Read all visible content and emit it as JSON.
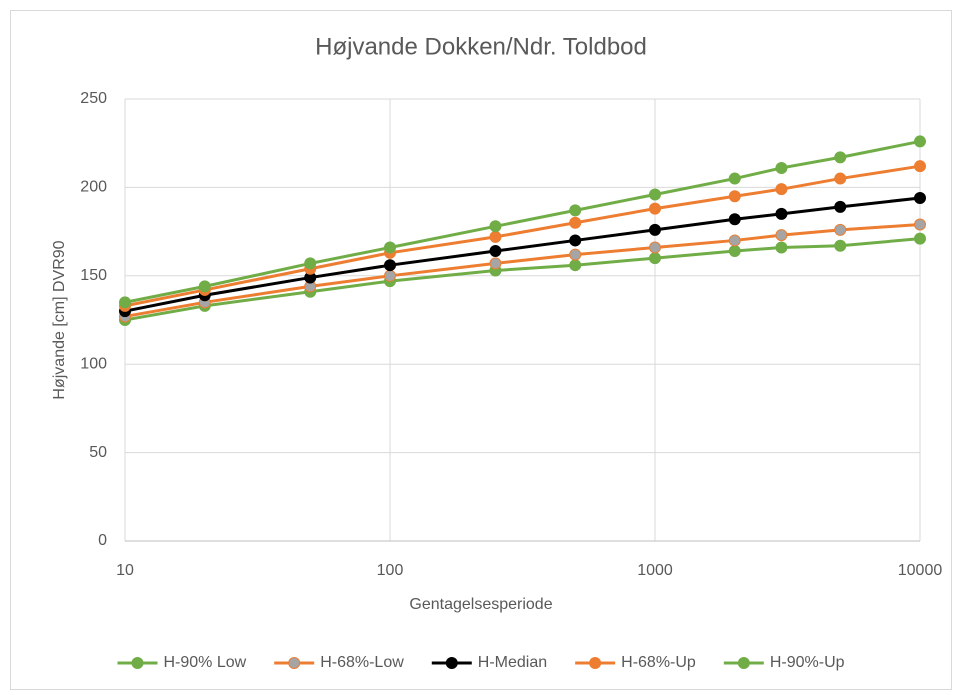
{
  "chart_data": {
    "type": "line",
    "title": "Højvande Dokken/Ndr. Toldbod",
    "x_label": "Gentagelsesperiode",
    "y_label": "Højvande [cm] DVR90",
    "x": [
      10,
      20,
      50,
      100,
      250,
      500,
      1000,
      2000,
      3000,
      5000,
      10000
    ],
    "xlog": true,
    "xlim": [
      10,
      10000
    ],
    "xticks": [
      10,
      100,
      1000,
      10000
    ],
    "ylim": [
      0,
      250
    ],
    "yticks": [
      0,
      50,
      100,
      150,
      200,
      250
    ],
    "grid": true,
    "legend": "bottom",
    "series": [
      {
        "name": "H-90% Low",
        "color": "#70ad47",
        "marker_color": "#70ad47",
        "values": [
          125,
          133,
          141,
          147,
          153,
          156,
          160,
          164,
          166,
          167,
          171
        ]
      },
      {
        "name": "H-68%-Low",
        "color": "#ed7d31",
        "marker_color": "#a5a5a5",
        "values": [
          127,
          135,
          144,
          150,
          157,
          162,
          166,
          170,
          173,
          176,
          179
        ]
      },
      {
        "name": "H-Median",
        "color": "#000000",
        "marker_color": "#000000",
        "values": [
          130,
          139,
          149,
          156,
          164,
          170,
          176,
          182,
          185,
          189,
          194
        ]
      },
      {
        "name": "H-68%-Up",
        "color": "#ed7d31",
        "marker_color": "#ed7d31",
        "values": [
          133,
          142,
          154,
          163,
          172,
          180,
          188,
          195,
          199,
          205,
          212
        ]
      },
      {
        "name": "H-90%-Up",
        "color": "#70ad47",
        "marker_color": "#70ad47",
        "values": [
          135,
          144,
          157,
          166,
          178,
          187,
          196,
          205,
          211,
          217,
          226
        ]
      }
    ]
  }
}
